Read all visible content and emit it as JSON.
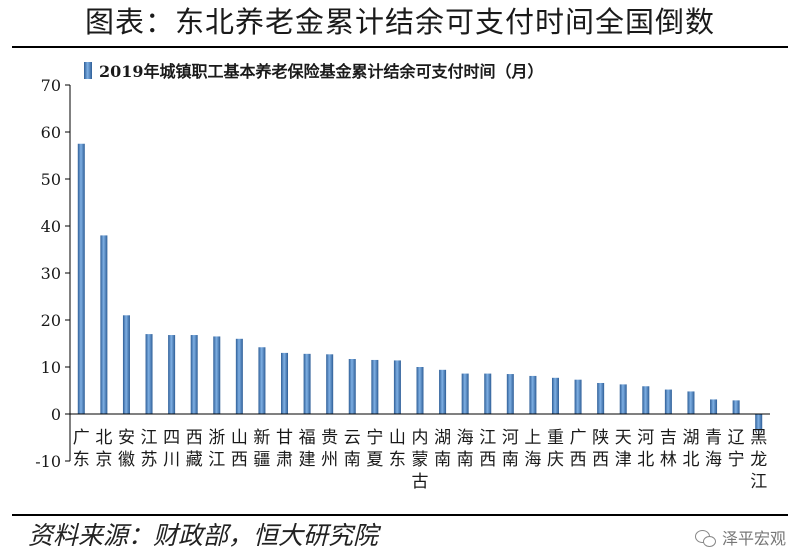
{
  "title": "图表：东北养老金累计结余可支付时间全国倒数",
  "source": "资料来源：财政部，恒大研究院",
  "watermark": {
    "icon": "wechat-icon",
    "text": "泽平宏观"
  },
  "colors": {
    "bar": "#4f86c6",
    "bar_dark": "#2e5e97",
    "axis": "#000000",
    "text": "#1a1a1a"
  },
  "chart_data": {
    "type": "bar",
    "legend": {
      "label": "2019年城镇职工基本养老保险基金累计结余可支付时间（月）",
      "position": "top"
    },
    "categories": [
      "广东",
      "北京",
      "安徽",
      "江苏",
      "四川",
      "西藏",
      "浙江",
      "山西",
      "新疆",
      "甘肃",
      "福建",
      "贵州",
      "云南",
      "宁夏",
      "山东",
      "内蒙古",
      "湖南",
      "海南",
      "江西",
      "河南",
      "上海",
      "重庆",
      "广西",
      "陕西",
      "天津",
      "河北",
      "吉林",
      "湖北",
      "青海",
      "辽宁",
      "黑龙江"
    ],
    "values": [
      57.5,
      38,
      21,
      17,
      16.8,
      16.8,
      16.5,
      16,
      14.2,
      13,
      12.8,
      12.7,
      11.7,
      11.5,
      11.4,
      10,
      9.4,
      8.6,
      8.6,
      8.5,
      8.1,
      7.7,
      7.3,
      6.6,
      6.3,
      5.9,
      5.2,
      4.8,
      3.1,
      2.9,
      -3.5
    ],
    "ylim": [
      -10,
      70
    ],
    "yticks": [
      -10,
      0,
      10,
      20,
      30,
      40,
      50,
      60,
      70
    ],
    "grid": false
  }
}
